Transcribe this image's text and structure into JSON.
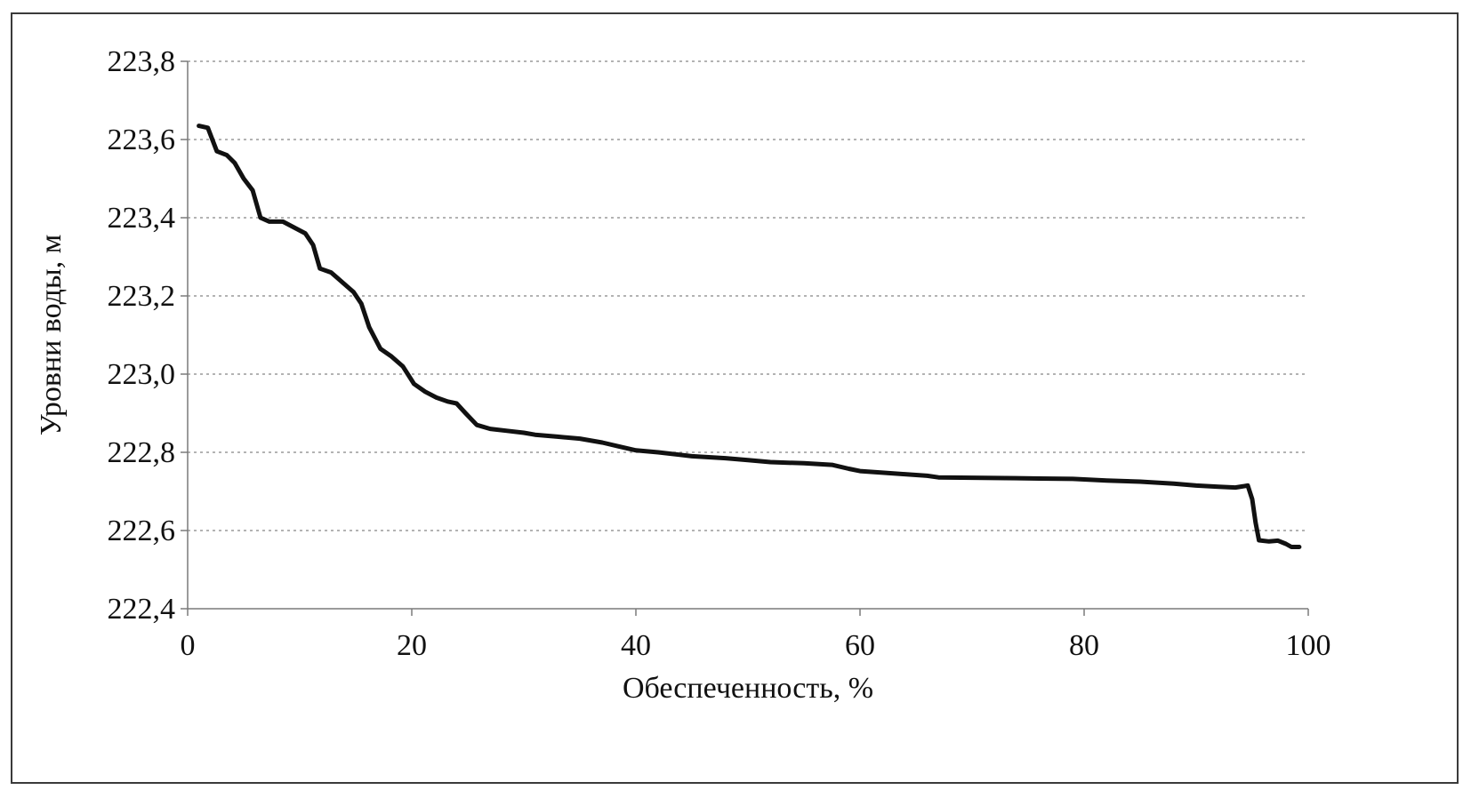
{
  "chart_data": {
    "type": "line",
    "title": "",
    "xlabel": "Обеспеченность, %",
    "ylabel": "Уровни воды, м",
    "xlim": [
      0,
      100
    ],
    "ylim": [
      222.4,
      223.8
    ],
    "grid": "horizontal",
    "legend": "none",
    "x_ticks": [
      {
        "value": 0,
        "label": "0"
      },
      {
        "value": 20,
        "label": "20"
      },
      {
        "value": 40,
        "label": "40"
      },
      {
        "value": 60,
        "label": "60"
      },
      {
        "value": 80,
        "label": "80"
      },
      {
        "value": 100,
        "label": "100"
      }
    ],
    "y_ticks": [
      {
        "value": 222.4,
        "label": "222,4"
      },
      {
        "value": 222.6,
        "label": "222,6"
      },
      {
        "value": 222.8,
        "label": "222,8"
      },
      {
        "value": 223.0,
        "label": "223,0"
      },
      {
        "value": 223.2,
        "label": "223,2"
      },
      {
        "value": 223.4,
        "label": "223,4"
      },
      {
        "value": 223.6,
        "label": "223,6"
      },
      {
        "value": 223.8,
        "label": "223,8"
      }
    ],
    "series": [
      {
        "color": "#111111",
        "points": [
          [
            1.0,
            223.635
          ],
          [
            1.8,
            223.63
          ],
          [
            2.6,
            223.57
          ],
          [
            3.5,
            223.56
          ],
          [
            4.2,
            223.54
          ],
          [
            5.0,
            223.5
          ],
          [
            5.8,
            223.47
          ],
          [
            6.5,
            223.4
          ],
          [
            7.3,
            223.39
          ],
          [
            8.5,
            223.39
          ],
          [
            9.5,
            223.375
          ],
          [
            10.5,
            223.36
          ],
          [
            11.2,
            223.33
          ],
          [
            11.8,
            223.27
          ],
          [
            12.8,
            223.26
          ],
          [
            13.8,
            223.235
          ],
          [
            14.8,
            223.21
          ],
          [
            15.5,
            223.18
          ],
          [
            16.2,
            223.12
          ],
          [
            17.2,
            223.065
          ],
          [
            18.2,
            223.045
          ],
          [
            19.2,
            223.02
          ],
          [
            20.2,
            222.975
          ],
          [
            21.2,
            222.955
          ],
          [
            22.2,
            222.94
          ],
          [
            23.2,
            222.93
          ],
          [
            24.0,
            222.925
          ],
          [
            24.8,
            222.9
          ],
          [
            25.8,
            222.87
          ],
          [
            27.0,
            222.86
          ],
          [
            28.5,
            222.855
          ],
          [
            30.0,
            222.85
          ],
          [
            31.0,
            222.845
          ],
          [
            33.0,
            222.84
          ],
          [
            35.0,
            222.835
          ],
          [
            37.0,
            222.825
          ],
          [
            38.5,
            222.815
          ],
          [
            40.0,
            222.805
          ],
          [
            42.0,
            222.8
          ],
          [
            45.0,
            222.79
          ],
          [
            48.0,
            222.785
          ],
          [
            50.0,
            222.78
          ],
          [
            52.0,
            222.775
          ],
          [
            55.0,
            222.772
          ],
          [
            57.5,
            222.768
          ],
          [
            59.0,
            222.758
          ],
          [
            60.0,
            222.752
          ],
          [
            62.0,
            222.748
          ],
          [
            64.0,
            222.744
          ],
          [
            66.0,
            222.74
          ],
          [
            67.0,
            222.736
          ],
          [
            70.0,
            222.735
          ],
          [
            73.0,
            222.734
          ],
          [
            76.0,
            222.733
          ],
          [
            79.0,
            222.732
          ],
          [
            82.0,
            222.728
          ],
          [
            85.0,
            222.725
          ],
          [
            88.0,
            222.72
          ],
          [
            90.0,
            222.715
          ],
          [
            92.0,
            222.712
          ],
          [
            93.5,
            222.71
          ],
          [
            94.6,
            222.715
          ],
          [
            95.0,
            222.68
          ],
          [
            95.3,
            222.62
          ],
          [
            95.6,
            222.575
          ],
          [
            96.5,
            222.572
          ],
          [
            97.3,
            222.574
          ],
          [
            98.0,
            222.566
          ],
          [
            98.5,
            222.558
          ],
          [
            99.2,
            222.558
          ]
        ]
      }
    ]
  }
}
